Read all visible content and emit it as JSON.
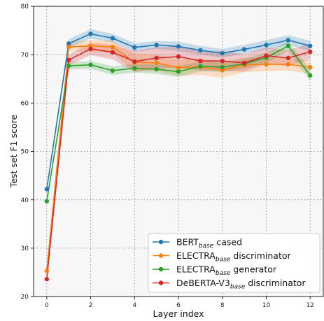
{
  "chart_data": {
    "type": "line",
    "xlabel": "Layer index",
    "ylabel": "Test set F1 score",
    "x": [
      0,
      1,
      2,
      3,
      4,
      5,
      6,
      7,
      8,
      9,
      10,
      11,
      12
    ],
    "xticks": [
      "0",
      "2",
      "4",
      "6",
      "8",
      "10",
      "12"
    ],
    "yticks": [
      "20",
      "30",
      "40",
      "50",
      "60",
      "70",
      "80"
    ],
    "xlim": [
      -0.6,
      12.6
    ],
    "ylim": [
      20,
      80
    ],
    "grid": true,
    "legend_position": "lower-right",
    "series": [
      {
        "name_base": "BERT",
        "name_sub": "base",
        "name_rest": " cased",
        "color": "#1f77b4",
        "values": [
          42.2,
          72.3,
          74.3,
          73.4,
          71.5,
          72.0,
          71.7,
          70.9,
          70.3,
          71.1,
          72.0,
          73.0,
          71.8
        ],
        "band": [
          0,
          0.9,
          1.0,
          0.9,
          0.9,
          0.8,
          1.0,
          0.9,
          0.9,
          0.9,
          1.0,
          1.0,
          1.1
        ]
      },
      {
        "name_base": "ELECTRA",
        "name_sub": "base",
        "name_rest": " discriminator",
        "color": "#ff7f0e",
        "values": [
          25.3,
          71.6,
          71.8,
          71.6,
          68.4,
          68.3,
          67.3,
          67.5,
          66.8,
          67.9,
          68.0,
          68.0,
          67.4
        ],
        "band": [
          0,
          0.9,
          1.2,
          1.3,
          1.8,
          1.7,
          1.7,
          1.7,
          1.6,
          1.5,
          1.4,
          1.3,
          1.3
        ]
      },
      {
        "name_base": "ELECTRA",
        "name_sub": "base",
        "name_rest": " generator",
        "color": "#2ca02c",
        "values": [
          39.7,
          67.7,
          67.9,
          66.7,
          67.2,
          67.0,
          66.5,
          67.6,
          67.4,
          68.1,
          69.4,
          71.8,
          65.7
        ],
        "band": [
          0,
          0.8,
          0.8,
          0.9,
          0.9,
          1.0,
          1.1,
          1.0,
          1.0,
          1.0,
          1.1,
          1.0,
          1.2
        ]
      },
      {
        "name_base": "DeBERTA-V3",
        "name_sub": "base",
        "name_rest": " discriminator",
        "color": "#d62728",
        "values": [
          23.6,
          68.9,
          71.2,
          70.5,
          68.6,
          69.3,
          69.6,
          68.7,
          68.7,
          68.3,
          69.8,
          69.3,
          70.6
        ],
        "band": [
          0,
          1.1,
          1.3,
          1.5,
          2.2,
          2.2,
          2.2,
          2.0,
          2.0,
          1.8,
          1.7,
          1.7,
          1.6
        ]
      }
    ]
  }
}
